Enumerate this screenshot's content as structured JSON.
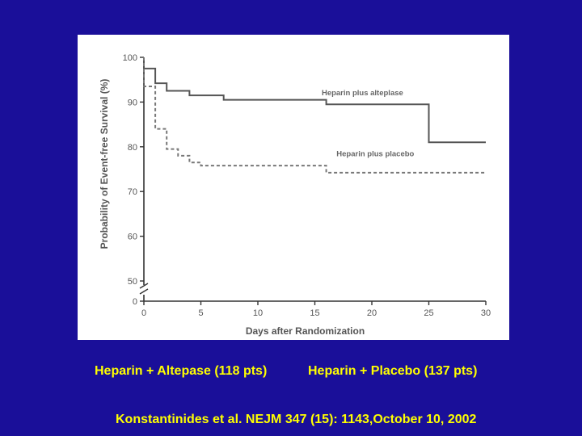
{
  "chart_data": {
    "type": "line",
    "step": true,
    "xlabel": "Days after Randomization",
    "ylabel": "Probability of Event-free Survival (%)",
    "xlim": [
      0,
      30
    ],
    "ylim": [
      0,
      100
    ],
    "axis_break": true,
    "x_ticks": [
      0,
      5,
      10,
      15,
      20,
      25,
      30
    ],
    "y_ticks": [
      0,
      50,
      60,
      70,
      80,
      90,
      100
    ],
    "grid": false,
    "series": [
      {
        "name": "Heparin plus alteplase",
        "style": "solid",
        "points": [
          [
            0,
            100
          ],
          [
            0,
            97.5
          ],
          [
            1,
            97.5
          ],
          [
            1,
            94.2
          ],
          [
            2,
            94.2
          ],
          [
            2,
            92.5
          ],
          [
            4,
            92.5
          ],
          [
            4,
            91.5
          ],
          [
            7,
            91.5
          ],
          [
            7,
            90.5
          ],
          [
            16,
            90.5
          ],
          [
            16,
            89.5
          ],
          [
            25,
            89.5
          ],
          [
            25,
            81
          ],
          [
            30,
            81
          ]
        ]
      },
      {
        "name": "Heparin plus placebo",
        "style": "dashed",
        "points": [
          [
            0,
            100
          ],
          [
            0,
            93.5
          ],
          [
            1,
            93.5
          ],
          [
            1,
            84
          ],
          [
            2,
            84
          ],
          [
            2,
            79.5
          ],
          [
            3,
            79.5
          ],
          [
            3,
            78
          ],
          [
            4,
            78
          ],
          [
            4,
            76.5
          ],
          [
            5,
            76.5
          ],
          [
            5,
            75.8
          ],
          [
            16,
            75.8
          ],
          [
            16,
            74.2
          ],
          [
            30,
            74.2
          ]
        ]
      }
    ]
  },
  "captions": {
    "left": "Heparin + Altepase (118 pts)",
    "right": "Heparin + Placebo (137 pts)",
    "citation": "Konstantinides et al. NEJM 347 (15): 1143,October 10, 2002"
  },
  "colors": {
    "background": "#1a0f99",
    "caption": "#ffff00",
    "panel": "#ffffff",
    "axis": "#333333",
    "text": "#555555"
  }
}
